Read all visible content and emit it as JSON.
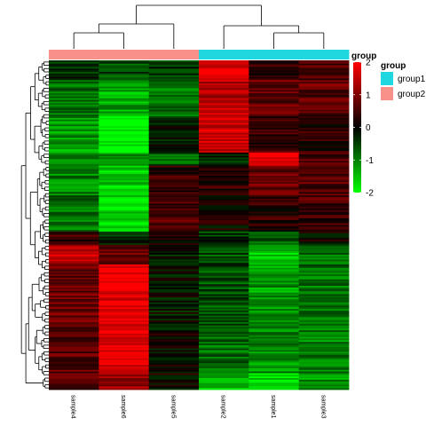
{
  "chart_data": {
    "type": "heatmap",
    "samples": [
      "sample4",
      "sample6",
      "sample5",
      "sample2",
      "sample1",
      "sample3"
    ],
    "sample_groups": [
      "group2",
      "group2",
      "group2",
      "group1",
      "group1",
      "group1"
    ],
    "annotation_title": "group",
    "groups": [
      {
        "name": "group1",
        "color": "#1fd7df"
      },
      {
        "name": "group2",
        "color": "#f8918a"
      }
    ],
    "color_scale": {
      "low": "#00ff00",
      "mid": "#000000",
      "high": "#ff0000",
      "min": -2,
      "max": 2,
      "ticks": [
        "2",
        "1",
        "0",
        "-1",
        "-2"
      ]
    },
    "row_blocks": [
      {
        "rows": 12,
        "values": [
          -0.3,
          -0.6,
          -0.4,
          1.8,
          0.3,
          0.6
        ]
      },
      {
        "rows": 22,
        "values": [
          -0.8,
          -1.3,
          -0.9,
          1.4,
          0.8,
          0.7
        ]
      },
      {
        "rows": 22,
        "values": [
          -1.2,
          -2.0,
          -0.1,
          1.6,
          0.4,
          0.3
        ]
      },
      {
        "rows": 8,
        "values": [
          -0.9,
          -1.1,
          -0.7,
          -0.3,
          1.9,
          0.6
        ]
      },
      {
        "rows": 18,
        "values": [
          -1.0,
          -1.6,
          0.4,
          0.3,
          0.9,
          0.7
        ]
      },
      {
        "rows": 22,
        "values": [
          -0.9,
          -1.7,
          0.6,
          0.1,
          0.3,
          0.5
        ]
      },
      {
        "rows": 8,
        "values": [
          0.4,
          -0.3,
          0.1,
          -0.4,
          -0.6,
          0.0
        ]
      },
      {
        "rows": 12,
        "values": [
          1.5,
          0.8,
          -0.2,
          -0.6,
          -1.5,
          -0.8
        ]
      },
      {
        "rows": 40,
        "values": [
          0.8,
          1.9,
          -0.1,
          -0.6,
          -1.2,
          -0.9
        ]
      },
      {
        "rows": 26,
        "values": [
          0.7,
          1.8,
          0.0,
          -0.8,
          -1.1,
          -1.0
        ]
      },
      {
        "rows": 10,
        "values": [
          0.6,
          1.2,
          0.1,
          -1.4,
          -1.7,
          -1.1
        ]
      }
    ]
  }
}
